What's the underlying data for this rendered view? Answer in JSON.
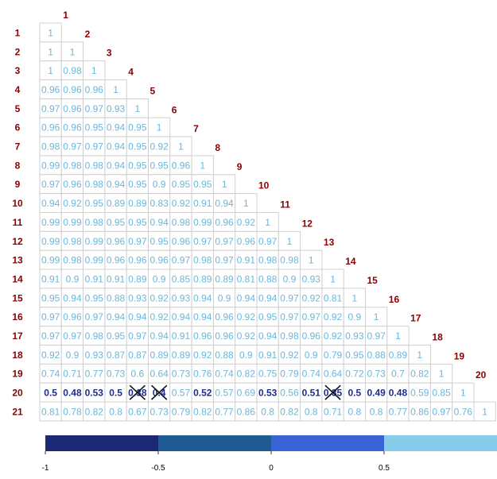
{
  "chart_data": {
    "type": "heatmap",
    "labels": [
      "1",
      "2",
      "3",
      "4",
      "5",
      "6",
      "7",
      "8",
      "9",
      "10",
      "11",
      "12",
      "13",
      "14",
      "15",
      "16",
      "17",
      "18",
      "19",
      "20",
      "21"
    ],
    "values": [
      [
        "1"
      ],
      [
        "1",
        "1"
      ],
      [
        "1",
        "0.98",
        "1"
      ],
      [
        "0.96",
        "0.96",
        "0.96",
        "1"
      ],
      [
        "0.97",
        "0.96",
        "0.97",
        "0.93",
        "1"
      ],
      [
        "0.96",
        "0.96",
        "0.95",
        "0.94",
        "0.95",
        "1"
      ],
      [
        "0.98",
        "0.97",
        "0.97",
        "0.94",
        "0.95",
        "0.92",
        "1"
      ],
      [
        "0.99",
        "0.98",
        "0.98",
        "0.94",
        "0.95",
        "0.95",
        "0.96",
        "1"
      ],
      [
        "0.97",
        "0.96",
        "0.98",
        "0.94",
        "0.95",
        "0.9",
        "0.95",
        "0.95",
        "1"
      ],
      [
        "0.94",
        "0.92",
        "0.95",
        "0.89",
        "0.89",
        "0.83",
        "0.92",
        "0.91",
        "0.94",
        "1"
      ],
      [
        "0.99",
        "0.99",
        "0.98",
        "0.95",
        "0.95",
        "0.94",
        "0.98",
        "0.99",
        "0.96",
        "0.92",
        "1"
      ],
      [
        "0.99",
        "0.98",
        "0.99",
        "0.96",
        "0.97",
        "0.95",
        "0.96",
        "0.97",
        "0.97",
        "0.96",
        "0.97",
        "1"
      ],
      [
        "0.99",
        "0.98",
        "0.99",
        "0.96",
        "0.96",
        "0.96",
        "0.97",
        "0.98",
        "0.97",
        "0.91",
        "0.98",
        "0.98",
        "1"
      ],
      [
        "0.91",
        "0.9",
        "0.91",
        "0.91",
        "0.89",
        "0.9",
        "0.85",
        "0.89",
        "0.89",
        "0.81",
        "0.88",
        "0.9",
        "0.93",
        "1"
      ],
      [
        "0.95",
        "0.94",
        "0.95",
        "0.88",
        "0.93",
        "0.92",
        "0.93",
        "0.94",
        "0.9",
        "0.94",
        "0.94",
        "0.97",
        "0.92",
        "0.81",
        "1"
      ],
      [
        "0.97",
        "0.96",
        "0.97",
        "0.94",
        "0.94",
        "0.92",
        "0.94",
        "0.94",
        "0.96",
        "0.92",
        "0.95",
        "0.97",
        "0.97",
        "0.92",
        "0.9",
        "1"
      ],
      [
        "0.97",
        "0.97",
        "0.98",
        "0.95",
        "0.97",
        "0.94",
        "0.91",
        "0.96",
        "0.96",
        "0.92",
        "0.94",
        "0.98",
        "0.96",
        "0.92",
        "0.93",
        "0.97",
        "1"
      ],
      [
        "0.92",
        "0.9",
        "0.93",
        "0.87",
        "0.87",
        "0.89",
        "0.89",
        "0.92",
        "0.88",
        "0.9",
        "0.91",
        "0.92",
        "0.9",
        "0.79",
        "0.95",
        "0.88",
        "0.89",
        "1"
      ],
      [
        "0.74",
        "0.71",
        "0.77",
        "0.73",
        "0.6",
        "0.64",
        "0.73",
        "0.76",
        "0.74",
        "0.82",
        "0.75",
        "0.79",
        "0.74",
        "0.64",
        "0.72",
        "0.73",
        "0.7",
        "0.82",
        "1"
      ],
      [
        "0.5",
        "0.48",
        "0.53",
        "0.5",
        "0.38",
        "0.4",
        "0.57",
        "0.52",
        "0.57",
        "0.69",
        "0.53",
        "0.56",
        "0.51",
        "0.35",
        "0.5",
        "0.49",
        "0.48",
        "0.59",
        "0.85",
        "1"
      ],
      [
        "0.81",
        "0.78",
        "0.82",
        "0.8",
        "0.67",
        "0.73",
        "0.79",
        "0.82",
        "0.77",
        "0.86",
        "0.8",
        "0.82",
        "0.8",
        "0.71",
        "0.8",
        "0.8",
        "0.77",
        "0.86",
        "0.97",
        "0.76",
        "1"
      ]
    ],
    "crossed_cells": [
      [
        20,
        5
      ],
      [
        20,
        6
      ],
      [
        20,
        14
      ]
    ],
    "color_scale": {
      "ticks": [
        "-1",
        "-0.5",
        "0",
        "0.5"
      ],
      "range": [
        -1,
        1
      ],
      "bands": [
        {
          "from": -1,
          "to": -0.5,
          "color": "#1c2873"
        },
        {
          "from": -0.5,
          "to": 0,
          "color": "#1f5c93"
        },
        {
          "from": 0,
          "to": 0.5,
          "color": "#3a63d6"
        },
        {
          "from": 0.5,
          "to": 1,
          "color": "#87cdea"
        }
      ]
    },
    "label_color": "#8b0000",
    "cell_text_colors": {
      "high": "#6ab7dc",
      "low": "#1e2e8c"
    }
  }
}
